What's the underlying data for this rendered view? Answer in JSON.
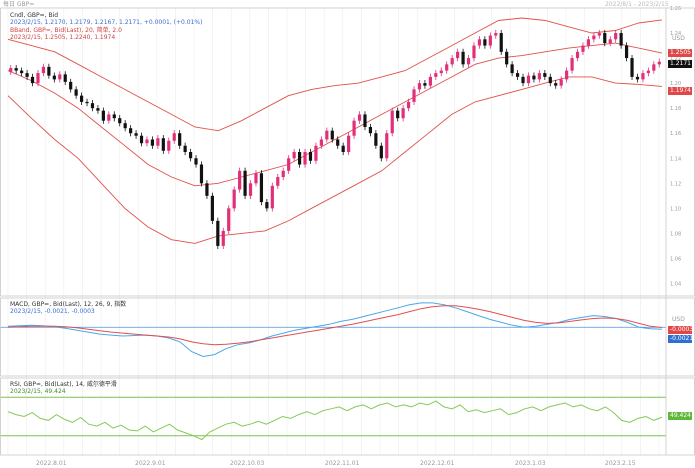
{
  "header": {
    "top_left": "每日 GBP=",
    "top_right": "2022/8/1 - 2023/2/15"
  },
  "price_panel": {
    "line1": "Cndl, GBP=, Bid",
    "line2": "2023/2/15, 1.2170, 1.2179, 1.2167, 1.2171, +0.0001, (+0.01%)",
    "line3": "BBand, GBP=, Bid(Last), 20, 简单, 2.0",
    "line4": "2023/2/15, 1.2505, 1.2240, 1.1974",
    "price_tag": "1.2171",
    "upper_tag": "1.2505",
    "lower_tag": "1.1974",
    "unit": "USD"
  },
  "macd_panel": {
    "line1": "MACD, GBP=, Bid(Last), 12, 26, 9, 指数",
    "line2": "2023/2/15, -0.0021, -0.0003",
    "tag1": "-0.0003",
    "tag2": "-0.0021",
    "unit": "USD"
  },
  "rsi_panel": {
    "line1": "RSI, GBP=, Bid(Last), 14, 威尔德平滑",
    "line2": "2023/2/15, 49.424",
    "tag": "49.424"
  },
  "x_axis": {
    "labels": [
      "2022.8.01",
      "2022.9.01",
      "2022.10.03",
      "2022.11.01",
      "2022.12.01",
      "2023.1.03",
      "2023.2.15"
    ]
  },
  "colors": {
    "bull": "#e0307a",
    "bear": "#111111",
    "band": "#e0504a",
    "macd": "#4aa8e8",
    "signal": "#e05050",
    "rsi": "#86c957",
    "rsi_band": "#7fc050",
    "zero_line": "#4a90e2"
  },
  "chart_data": [
    {
      "type": "candlestick",
      "title": "Cndl, GBP=, Bid",
      "ylim": [
        1.03,
        1.26
      ],
      "y_ticks": [
        1.26,
        1.24,
        1.22,
        1.2,
        1.18,
        1.16,
        1.14,
        1.12,
        1.1,
        1.08,
        1.06,
        1.04
      ],
      "closes": [
        1.212,
        1.21,
        1.208,
        1.205,
        1.2,
        1.208,
        1.213,
        1.206,
        1.203,
        1.207,
        1.201,
        1.195,
        1.19,
        1.185,
        1.184,
        1.18,
        1.178,
        1.17,
        1.175,
        1.172,
        1.168,
        1.164,
        1.16,
        1.158,
        1.152,
        1.155,
        1.15,
        1.156,
        1.146,
        1.154,
        1.16,
        1.15,
        1.145,
        1.14,
        1.135,
        1.12,
        1.11,
        1.09,
        1.07,
        1.082,
        1.1,
        1.115,
        1.13,
        1.11,
        1.12,
        1.128,
        1.105,
        1.1,
        1.118,
        1.125,
        1.13,
        1.14,
        1.145,
        1.135,
        1.145,
        1.138,
        1.15,
        1.155,
        1.162,
        1.155,
        1.15,
        1.145,
        1.158,
        1.17,
        1.175,
        1.165,
        1.16,
        1.15,
        1.14,
        1.16,
        1.178,
        1.172,
        1.18,
        1.185,
        1.195,
        1.2,
        1.198,
        1.205,
        1.208,
        1.21,
        1.215,
        1.22,
        1.225,
        1.215,
        1.22,
        1.23,
        1.235,
        1.23,
        1.238,
        1.24,
        1.225,
        1.215,
        1.208,
        1.205,
        1.2,
        1.206,
        1.203,
        1.208,
        1.205,
        1.2,
        1.198,
        1.203,
        1.21,
        1.22,
        1.225,
        1.23,
        1.235,
        1.238,
        1.24,
        1.232,
        1.235,
        1.24,
        1.23,
        1.22,
        1.205,
        1.203,
        1.208,
        1.21,
        1.215,
        1.2171
      ],
      "upper_band": [
        1.235,
        1.23,
        1.225,
        1.215,
        1.205,
        1.195,
        1.185,
        1.175,
        1.165,
        1.162,
        1.17,
        1.18,
        1.19,
        1.195,
        1.198,
        1.2,
        1.205,
        1.21,
        1.22,
        1.23,
        1.24,
        1.25,
        1.252,
        1.25,
        1.245,
        1.24,
        1.242,
        1.248,
        1.2505
      ],
      "middle_band": [
        1.21,
        1.202,
        1.192,
        1.18,
        1.165,
        1.15,
        1.135,
        1.125,
        1.118,
        1.12,
        1.125,
        1.13,
        1.135,
        1.145,
        1.155,
        1.165,
        1.175,
        1.185,
        1.195,
        1.205,
        1.215,
        1.22,
        1.222,
        1.225,
        1.228,
        1.23,
        1.232,
        1.228,
        1.224
      ],
      "lower_band": [
        1.19,
        1.172,
        1.155,
        1.14,
        1.12,
        1.1,
        1.085,
        1.075,
        1.072,
        1.078,
        1.08,
        1.082,
        1.09,
        1.1,
        1.11,
        1.12,
        1.13,
        1.145,
        1.16,
        1.175,
        1.185,
        1.19,
        1.195,
        1.2,
        1.205,
        1.205,
        1.2,
        1.199,
        1.1974
      ]
    },
    {
      "type": "line",
      "title": "MACD, GBP=, Bid(Last), 12, 26, 9, 指数",
      "ylim": [
        -0.05,
        0.03
      ],
      "series": [
        {
          "values": [
            0.001,
            0.0015,
            0.002,
            0.0015,
            0.0005,
            -0.001,
            -0.003,
            -0.005,
            -0.007,
            -0.008,
            -0.009,
            -0.0085,
            -0.008,
            -0.009,
            -0.011,
            -0.015,
            -0.025,
            -0.03,
            -0.028,
            -0.022,
            -0.018,
            -0.016,
            -0.013,
            -0.009,
            -0.006,
            -0.003,
            -0.001,
            0.001,
            0.003,
            0.006,
            0.008,
            0.011,
            0.014,
            0.017,
            0.02,
            0.023,
            0.025,
            0.025,
            0.023,
            0.02,
            0.016,
            0.012,
            0.008,
            0.005,
            0.002,
            0.0,
            0.001,
            0.003,
            0.005,
            0.008,
            0.01,
            0.012,
            0.011,
            0.009,
            0.005,
            0.0,
            -0.0015,
            -0.0021
          ]
        },
        {
          "values": [
            0.0,
            0.0005,
            0.001,
            0.0012,
            0.001,
            0.0005,
            -0.0005,
            -0.002,
            -0.0035,
            -0.005,
            -0.006,
            -0.007,
            -0.008,
            -0.009,
            -0.01,
            -0.012,
            -0.015,
            -0.017,
            -0.018,
            -0.0175,
            -0.0165,
            -0.015,
            -0.013,
            -0.011,
            -0.009,
            -0.007,
            -0.005,
            -0.003,
            -0.001,
            0.001,
            0.003,
            0.0055,
            0.008,
            0.0105,
            0.013,
            0.016,
            0.019,
            0.021,
            0.022,
            0.022,
            0.0205,
            0.0185,
            0.016,
            0.013,
            0.01,
            0.007,
            0.005,
            0.004,
            0.0045,
            0.006,
            0.0075,
            0.009,
            0.0095,
            0.009,
            0.007,
            0.004,
            0.001,
            -0.0003
          ]
        }
      ]
    },
    {
      "type": "line",
      "title": "RSI, GBP=, Bid(Last), 14, 威尔德平滑",
      "ylim": [
        10,
        90
      ],
      "bands": [
        70,
        30
      ],
      "series": [
        {
          "values": [
            55,
            52,
            50,
            54,
            48,
            46,
            52,
            47,
            44,
            49,
            42,
            40,
            44,
            38,
            41,
            36,
            35,
            40,
            34,
            38,
            42,
            36,
            33,
            30,
            26,
            34,
            38,
            42,
            44,
            40,
            42,
            45,
            42,
            46,
            50,
            48,
            52,
            55,
            52,
            56,
            58,
            60,
            56,
            60,
            62,
            58,
            62,
            64,
            60,
            62,
            60,
            64,
            62,
            66,
            60,
            58,
            62,
            55,
            57,
            54,
            56,
            58,
            52,
            54,
            58,
            60,
            56,
            60,
            62,
            64,
            60,
            62,
            58,
            56,
            60,
            54,
            46,
            44,
            48,
            50,
            46,
            49.424
          ]
        }
      ]
    }
  ]
}
